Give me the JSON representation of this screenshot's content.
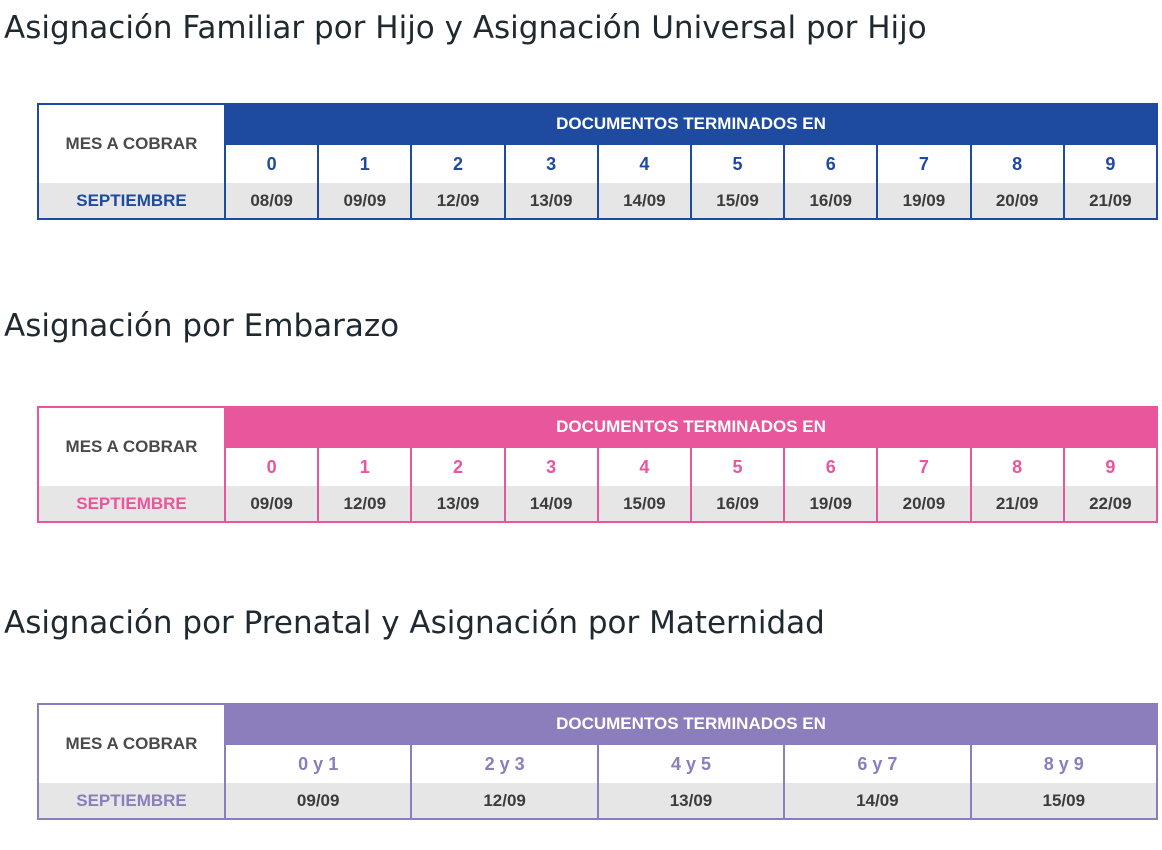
{
  "sections": [
    {
      "title": "Asignación Familiar por Hijo y Asignación Universal por Hijo",
      "color": "#1e4aa0",
      "mes_label": "MES A COBRAR",
      "header": "DOCUMENTOS TERMINADOS EN",
      "month": "SEPTIEMBRE",
      "columns": [
        {
          "digit": "0",
          "date": "08/09"
        },
        {
          "digit": "1",
          "date": "09/09"
        },
        {
          "digit": "2",
          "date": "12/09"
        },
        {
          "digit": "3",
          "date": "13/09"
        },
        {
          "digit": "4",
          "date": "14/09"
        },
        {
          "digit": "5",
          "date": "15/09"
        },
        {
          "digit": "6",
          "date": "16/09"
        },
        {
          "digit": "7",
          "date": "19/09"
        },
        {
          "digit": "8",
          "date": "20/09"
        },
        {
          "digit": "9",
          "date": "21/09"
        }
      ]
    },
    {
      "title": "Asignación por Embarazo",
      "color": "#e8569c",
      "mes_label": "MES A COBRAR",
      "header": "DOCUMENTOS TERMINADOS EN",
      "month": "SEPTIEMBRE",
      "columns": [
        {
          "digit": "0",
          "date": "09/09"
        },
        {
          "digit": "1",
          "date": "12/09"
        },
        {
          "digit": "2",
          "date": "13/09"
        },
        {
          "digit": "3",
          "date": "14/09"
        },
        {
          "digit": "4",
          "date": "15/09"
        },
        {
          "digit": "5",
          "date": "16/09"
        },
        {
          "digit": "6",
          "date": "19/09"
        },
        {
          "digit": "7",
          "date": "20/09"
        },
        {
          "digit": "8",
          "date": "21/09"
        },
        {
          "digit": "9",
          "date": "22/09"
        }
      ]
    },
    {
      "title": "Asignación por Prenatal y Asignación por Maternidad",
      "color": "#8c7dbc",
      "mes_label": "MES A COBRAR",
      "header": "DOCUMENTOS TERMINADOS EN",
      "month": "SEPTIEMBRE",
      "columns": [
        {
          "digit": "0 y 1",
          "date": "09/09"
        },
        {
          "digit": "2 y 3",
          "date": "12/09"
        },
        {
          "digit": "4 y 5",
          "date": "13/09"
        },
        {
          "digit": "6 y 7",
          "date": "14/09"
        },
        {
          "digit": "8 y 9",
          "date": "15/09"
        }
      ]
    }
  ]
}
